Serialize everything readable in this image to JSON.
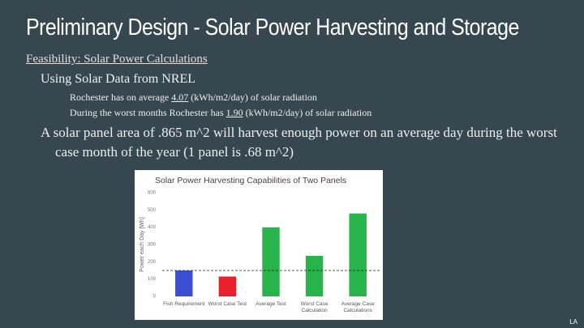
{
  "slide": {
    "title": "Preliminary Design - Solar Power Harvesting and Storage",
    "heading": "Feasibility: Solar Power Calculations",
    "subheading": "Using Solar Data from NREL",
    "facts": [
      {
        "before": "Rochester has on average ",
        "value": "4.07",
        "after": " (kWh/m2/day) of solar radiation"
      },
      {
        "before": "During the worst months Rochester has ",
        "value": "1.90",
        "after": " (kWh/m2/day) of solar radiation"
      }
    ],
    "conclusion": "A solar panel area of .865 m^2 will harvest enough power on an average day during the worst case month of the year (1 panel is .68 m^2)",
    "footer": "LA"
  },
  "chart_data": {
    "type": "bar",
    "title": "Solar Power Harvesting Capabilities of Two Panels",
    "y_label": "Power each Day [Wh]",
    "categories": [
      "Fish Requirement",
      "Worst Case Test",
      "Average Test",
      "Worst Case Calculation",
      "Average Case Calculations"
    ],
    "values": [
      150,
      115,
      400,
      235,
      480
    ],
    "colors": [
      "#3a4fd0",
      "#e8202a",
      "#28b34b",
      "#28b34b",
      "#28b34b"
    ],
    "reference_line": 150,
    "ylim": [
      0,
      600
    ],
    "yticks": [
      0,
      100,
      200,
      300,
      400,
      500,
      600
    ],
    "grid": false
  }
}
